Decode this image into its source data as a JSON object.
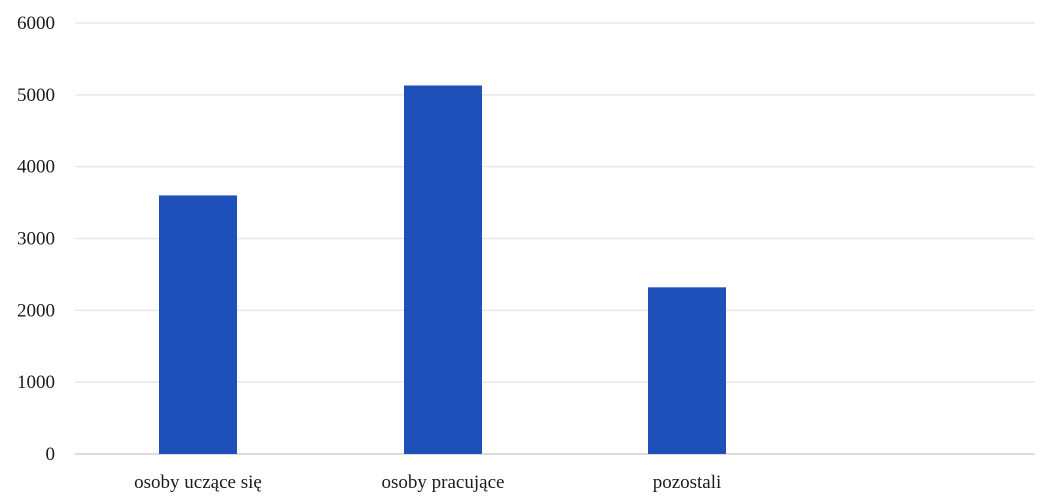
{
  "chart_data": {
    "type": "bar",
    "categories": [
      "osoby uczące się",
      "osoby pracujące",
      "pozostali"
    ],
    "values": [
      3600,
      5130,
      2320
    ],
    "ylim": [
      0,
      6000
    ],
    "y_ticks": [
      0,
      1000,
      2000,
      3000,
      4000,
      5000,
      6000
    ],
    "grid": true,
    "bar_color": "#1f4fb8",
    "grid_color": "#e8e8e8"
  }
}
